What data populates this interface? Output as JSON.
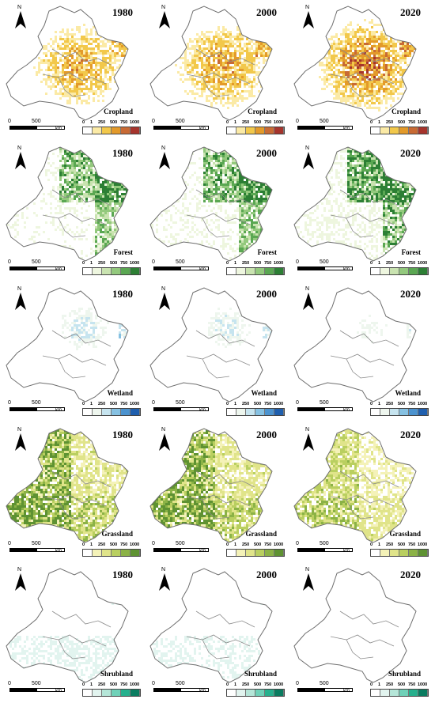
{
  "years": [
    "1980",
    "2000",
    "2020"
  ],
  "north_label": "N",
  "scale": {
    "zero": "0",
    "mid": "500",
    "unit": "km"
  },
  "legend_ticks": [
    "0",
    "1",
    "250",
    "500",
    "750",
    "1000"
  ],
  "rows": [
    {
      "type": "Cropland",
      "colors": [
        "#ffffff",
        "#fbeaa6",
        "#f2c84b",
        "#e39a2a",
        "#c86a34",
        "#a6342c"
      ],
      "densities": [
        0.45,
        0.5,
        0.75
      ]
    },
    {
      "type": "Forest",
      "colors": [
        "#ffffff",
        "#eef6df",
        "#c9e3b0",
        "#93c97d",
        "#5aa752",
        "#2c7f34"
      ],
      "densities": [
        0.55,
        0.6,
        0.75
      ]
    },
    {
      "type": "Wetland",
      "colors": [
        "#ffffff",
        "#eef6ee",
        "#c6e4ef",
        "#86c1e2",
        "#4c93cf",
        "#1f5fae"
      ],
      "densities": [
        0.28,
        0.24,
        0.14
      ]
    },
    {
      "type": "Grassland",
      "colors": [
        "#ffffff",
        "#f4f2b8",
        "#e0e48a",
        "#b9cf60",
        "#8bb246",
        "#5e9232"
      ],
      "densities": [
        0.8,
        0.8,
        0.45
      ]
    },
    {
      "type": "Shrubland",
      "colors": [
        "#ffffff",
        "#e2f4ef",
        "#b5e6d8",
        "#6fd1b8",
        "#26b08d",
        "#0a7c60"
      ],
      "densities": [
        0.22,
        0.2,
        0.1
      ]
    }
  ]
}
